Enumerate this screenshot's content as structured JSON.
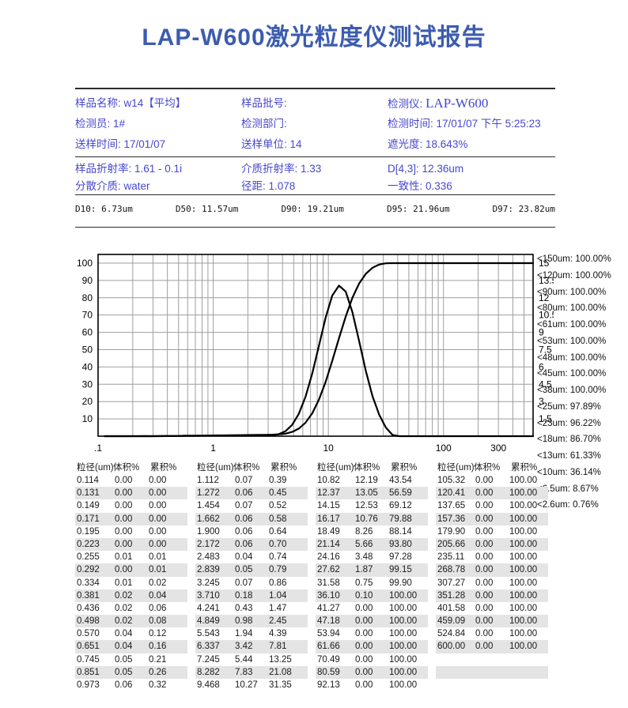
{
  "title": "LAP-W600激光粒度仪测试报告",
  "colors": {
    "title_blue": "#3c5cae",
    "info_text_blue": "#4747cf",
    "table_text": "#1a1a1a",
    "row_stripe": "#e4e4e4",
    "grid_line": "#9e9e9e",
    "curve": "#000000"
  },
  "info_block1": [
    [
      {
        "label": "样品名称:",
        "value": "w14【平均】"
      },
      {
        "label": "样品批号:",
        "value": ""
      },
      {
        "label": "检测仪:",
        "value": "LAP-W600"
      }
    ],
    [
      {
        "label": "检测员:",
        "value": "1#"
      },
      {
        "label": "检测部门:",
        "value": ""
      },
      {
        "label": "检测时间:",
        "value": "17/01/07 下午 5:25:23"
      }
    ],
    [
      {
        "label": "送样时间:",
        "value": "17/01/07"
      },
      {
        "label": "送样单位:",
        "value": "14"
      },
      {
        "label": "遮光度:",
        "value": "18.643%"
      }
    ]
  ],
  "info_block2": [
    [
      {
        "label": "样品折射率:",
        "value": "1.61 - 0.1i"
      },
      {
        "label": "介质折射率:",
        "value": "1.33"
      },
      {
        "label": "D[4,3]:",
        "value": "12.36um"
      }
    ],
    [
      {
        "label": "分散介质:",
        "value": "water"
      },
      {
        "label": "径距:",
        "value": "1.078"
      },
      {
        "label": "一致性:",
        "value": "0.336"
      }
    ]
  ],
  "d_values": [
    "D10: 6.73um",
    "D50: 11.57um",
    "D90: 19.21um",
    "D95: 21.96um",
    "D97: 23.82um"
  ],
  "chart_data": {
    "type": "line",
    "title": "",
    "xlabel": "",
    "ylabel_left": "累积%",
    "ylabel_right": "体积%",
    "log_x": true,
    "grid": true,
    "xlim": [
      0.1,
      600
    ],
    "left_ylim": [
      0,
      105
    ],
    "right_ylim": [
      0,
      15.75
    ],
    "x_tick_values": [
      0.1,
      1,
      10,
      100,
      300
    ],
    "x_tick_labels": [
      ".1",
      "1",
      "10",
      "100",
      "300"
    ],
    "left_ticks": [
      10,
      20,
      30,
      40,
      50,
      60,
      70,
      80,
      90,
      100
    ],
    "right_ticks": [
      1.5,
      3,
      4.5,
      6,
      7.5,
      9,
      10.5,
      12,
      13.5,
      15
    ],
    "x": [
      0.114,
      0.131,
      0.149,
      0.171,
      0.195,
      0.223,
      0.255,
      0.292,
      0.334,
      0.381,
      0.436,
      0.498,
      0.57,
      0.651,
      0.745,
      0.851,
      0.973,
      1.112,
      1.272,
      1.454,
      1.662,
      1.9,
      2.172,
      2.483,
      2.839,
      3.245,
      3.71,
      4.241,
      4.849,
      5.543,
      6.337,
      7.245,
      8.282,
      9.468,
      10.82,
      12.37,
      14.15,
      16.17,
      18.49,
      21.14,
      24.16,
      27.62,
      31.58,
      36.1,
      41.27,
      47.18,
      53.94,
      61.66,
      70.49,
      80.59,
      92.13,
      105.32,
      120.41,
      137.65,
      157.36,
      179.9,
      205.66,
      235.11,
      268.78,
      307.27,
      351.28,
      401.58,
      459.09,
      524.84,
      600.0
    ],
    "series": [
      {
        "name": "体积%",
        "axis": "right",
        "values": [
          0,
          0,
          0,
          0,
          0,
          0,
          0.01,
          0,
          0.01,
          0.02,
          0.02,
          0.02,
          0.04,
          0.04,
          0.05,
          0.05,
          0.06,
          0.07,
          0.06,
          0.07,
          0.06,
          0.06,
          0.06,
          0.04,
          0.05,
          0.07,
          0.18,
          0.43,
          0.98,
          1.94,
          3.42,
          5.44,
          7.83,
          10.27,
          12.19,
          13.05,
          12.53,
          10.76,
          8.26,
          5.66,
          3.48,
          1.87,
          0.75,
          0.1,
          0,
          0,
          0,
          0,
          0,
          0,
          0,
          0,
          0,
          0,
          0,
          0,
          0,
          0,
          0,
          0,
          0,
          0,
          0,
          0,
          0
        ]
      },
      {
        "name": "累积%",
        "axis": "left",
        "values": [
          0,
          0,
          0,
          0,
          0,
          0,
          0.01,
          0.01,
          0.02,
          0.04,
          0.06,
          0.08,
          0.12,
          0.16,
          0.21,
          0.26,
          0.32,
          0.39,
          0.45,
          0.52,
          0.58,
          0.64,
          0.7,
          0.74,
          0.79,
          0.86,
          1.04,
          1.47,
          2.45,
          4.39,
          7.81,
          13.25,
          21.08,
          31.35,
          43.54,
          56.59,
          69.12,
          79.88,
          88.14,
          93.8,
          97.28,
          99.15,
          99.9,
          100,
          100,
          100,
          100,
          100,
          100,
          100,
          100,
          100,
          100,
          100,
          100,
          100,
          100,
          100,
          100,
          100,
          100,
          100,
          100,
          100,
          100
        ]
      }
    ]
  },
  "size_summary": [
    "<150um:  100.00%",
    "<120um:  100.00%",
    "<90um:  100.00%",
    "<80um:  100.00%",
    "<61um:  100.00%",
    "<53um:  100.00%",
    "<48um:  100.00%",
    "<45um:  100.00%",
    "<38um:  100.00%",
    "<25um:  97.89%",
    "<23um:  96.22%",
    "<18um:  86.70%",
    "<13um:  61.33%",
    "<10um:  36.14%",
    "<6.5um:  8.67%",
    "<2.6um:  0.76%"
  ],
  "table": {
    "headers": [
      "粒径(um)",
      "体积%",
      "累积%"
    ],
    "groups": [
      [
        [
          "0.114",
          "0.00",
          "0.00"
        ],
        [
          "0.131",
          "0.00",
          "0.00"
        ],
        [
          "0.149",
          "0.00",
          "0.00"
        ],
        [
          "0.171",
          "0.00",
          "0.00"
        ],
        [
          "0.195",
          "0.00",
          "0.00"
        ],
        [
          "0.223",
          "0.00",
          "0.00"
        ],
        [
          "0.255",
          "0.01",
          "0.01"
        ],
        [
          "0.292",
          "0.00",
          "0.01"
        ],
        [
          "0.334",
          "0.01",
          "0.02"
        ],
        [
          "0.381",
          "0.02",
          "0.04"
        ],
        [
          "0.436",
          "0.02",
          "0.06"
        ],
        [
          "0.498",
          "0.02",
          "0.08"
        ],
        [
          "0.570",
          "0.04",
          "0.12"
        ],
        [
          "0.651",
          "0.04",
          "0.16"
        ],
        [
          "0.745",
          "0.05",
          "0.21"
        ],
        [
          "0.851",
          "0.05",
          "0.26"
        ],
        [
          "0.973",
          "0.06",
          "0.32"
        ]
      ],
      [
        [
          "1.112",
          "0.07",
          "0.39"
        ],
        [
          "1.272",
          "0.06",
          "0.45"
        ],
        [
          "1.454",
          "0.07",
          "0.52"
        ],
        [
          "1.662",
          "0.06",
          "0.58"
        ],
        [
          "1.900",
          "0.06",
          "0.64"
        ],
        [
          "2.172",
          "0.06",
          "0.70"
        ],
        [
          "2.483",
          "0.04",
          "0.74"
        ],
        [
          "2.839",
          "0.05",
          "0.79"
        ],
        [
          "3.245",
          "0.07",
          "0.86"
        ],
        [
          "3.710",
          "0.18",
          "1.04"
        ],
        [
          "4.241",
          "0.43",
          "1.47"
        ],
        [
          "4.849",
          "0.98",
          "2.45"
        ],
        [
          "5.543",
          "1.94",
          "4.39"
        ],
        [
          "6.337",
          "3.42",
          "7.81"
        ],
        [
          "7.245",
          "5.44",
          "13.25"
        ],
        [
          "8.282",
          "7.83",
          "21.08"
        ],
        [
          "9.468",
          "10.27",
          "31.35"
        ]
      ],
      [
        [
          "10.82",
          "12.19",
          "43.54"
        ],
        [
          "12.37",
          "13.05",
          "56.59"
        ],
        [
          "14.15",
          "12.53",
          "69.12"
        ],
        [
          "16.17",
          "10.76",
          "79.88"
        ],
        [
          "18.49",
          "8.26",
          "88.14"
        ],
        [
          "21.14",
          "5.66",
          "93.80"
        ],
        [
          "24.16",
          "3.48",
          "97.28"
        ],
        [
          "27.62",
          "1.87",
          "99.15"
        ],
        [
          "31.58",
          "0.75",
          "99.90"
        ],
        [
          "36.10",
          "0.10",
          "100.00"
        ],
        [
          "41.27",
          "0.00",
          "100.00"
        ],
        [
          "47.18",
          "0.00",
          "100.00"
        ],
        [
          "53.94",
          "0.00",
          "100.00"
        ],
        [
          "61.66",
          "0.00",
          "100.00"
        ],
        [
          "70.49",
          "0.00",
          "100.00"
        ],
        [
          "80.59",
          "0.00",
          "100.00"
        ],
        [
          "92.13",
          "0.00",
          "100.00"
        ]
      ],
      [
        [
          "105.32",
          "0.00",
          "100.00"
        ],
        [
          "120.41",
          "0.00",
          "100.00"
        ],
        [
          "137.65",
          "0.00",
          "100.00"
        ],
        [
          "157.36",
          "0.00",
          "100.00"
        ],
        [
          "179.90",
          "0.00",
          "100.00"
        ],
        [
          "205.66",
          "0.00",
          "100.00"
        ],
        [
          "235.11",
          "0.00",
          "100.00"
        ],
        [
          "268.78",
          "0.00",
          "100.00"
        ],
        [
          "307.27",
          "0.00",
          "100.00"
        ],
        [
          "351.28",
          "0.00",
          "100.00"
        ],
        [
          "401.58",
          "0.00",
          "100.00"
        ],
        [
          "459.09",
          "0.00",
          "100.00"
        ],
        [
          "524.84",
          "0.00",
          "100.00"
        ],
        [
          "600.00",
          "0.00",
          "100.00"
        ]
      ]
    ],
    "rows_per_group": 17
  }
}
